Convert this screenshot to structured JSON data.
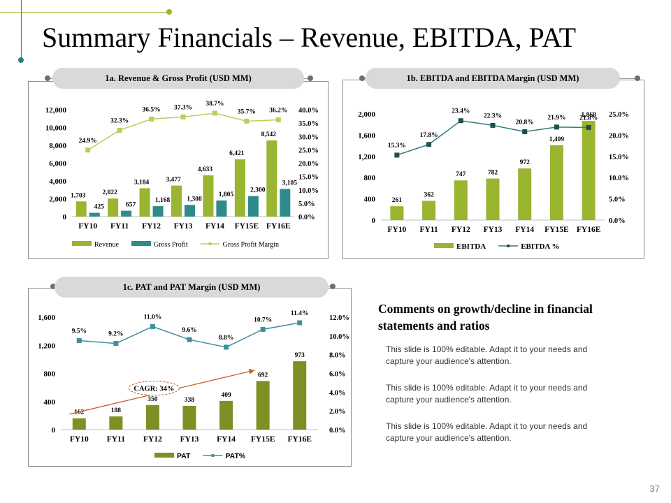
{
  "page": {
    "title": "Summary Financials – Revenue, EBITDA, PAT",
    "page_number": "37"
  },
  "chart_data": [
    {
      "id": "revenue",
      "type": "bar",
      "title": "1a. Revenue & Gross Profit (USD MM)",
      "categories": [
        "FY10",
        "FY11",
        "FY12",
        "FY13",
        "FY14",
        "FY15E",
        "FY16E"
      ],
      "series": [
        {
          "name": "Revenue",
          "type": "bar",
          "axis": "left",
          "color": "#9ab52f",
          "values": [
            1703,
            2022,
            3184,
            3477,
            4633,
            6421,
            8542
          ],
          "labels": [
            "1,703",
            "2,022",
            "3,184",
            "3,477",
            "4,633",
            "6,421",
            "8,542"
          ]
        },
        {
          "name": "Gross Profit",
          "type": "bar",
          "axis": "left",
          "color": "#2e8b8b",
          "values": [
            425,
            657,
            1168,
            1308,
            1805,
            2300,
            3105
          ],
          "labels": [
            "425",
            "657",
            "1,168",
            "1,308",
            "1,805",
            "2,300",
            "3,105"
          ]
        },
        {
          "name": "Gross Profit Margin",
          "type": "line",
          "axis": "right",
          "color": "#b8cf5a",
          "values": [
            24.9,
            32.3,
            36.5,
            37.3,
            38.7,
            35.7,
            36.2
          ],
          "labels": [
            "24.9%",
            "32.3%",
            "36.5%",
            "37.3%",
            "38.7%",
            "35.7%",
            "36.2%"
          ]
        }
      ],
      "ylim": [
        0,
        12000
      ],
      "yticks": [
        "0",
        "2,000",
        "4,000",
        "6,000",
        "8,000",
        "10,000",
        "12,000"
      ],
      "y2lim": [
        0,
        40
      ],
      "y2ticks": [
        "0.0%",
        "5.0%",
        "10.0%",
        "15.0%",
        "20.0%",
        "25.0%",
        "30.0%",
        "35.0%",
        "40.0%"
      ],
      "legend": "bottom"
    },
    {
      "id": "ebitda",
      "type": "bar",
      "title": "1b. EBITDA and EBITDA Margin (USD MM)",
      "categories": [
        "FY10",
        "FY11",
        "FY12",
        "FY13",
        "FY14",
        "FY15E",
        "FY16E"
      ],
      "series": [
        {
          "name": "EBITDA",
          "type": "bar",
          "axis": "left",
          "color": "#9ab52f",
          "values": [
            261,
            362,
            747,
            782,
            972,
            1409,
            1868
          ],
          "labels": [
            "261",
            "362",
            "747",
            "782",
            "972",
            "1,409",
            "1,868"
          ]
        },
        {
          "name": "EBITDA %",
          "type": "line",
          "axis": "right",
          "color": "#2e7d7d",
          "values": [
            15.3,
            17.8,
            23.4,
            22.3,
            20.8,
            21.9,
            21.8
          ],
          "labels": [
            "15.3%",
            "17.8%",
            "23.4%",
            "22.3%",
            "20.8%",
            "21.9%",
            "21.8%"
          ]
        }
      ],
      "ylim": [
        0,
        2000
      ],
      "yticks": [
        "0",
        "400",
        "800",
        "1,200",
        "1,600",
        "2,000"
      ],
      "y2lim": [
        0,
        25
      ],
      "y2ticks": [
        "0.0%",
        "5.0%",
        "10.0%",
        "15.0%",
        "20.0%",
        "25.0%"
      ],
      "legend": "bottom"
    },
    {
      "id": "pat",
      "type": "bar",
      "title": "1c. PAT and PAT Margin (USD MM)",
      "categories": [
        "FY10",
        "FY11",
        "FY12",
        "FY13",
        "FY14",
        "FY15E",
        "FY16E"
      ],
      "series": [
        {
          "name": "PAT",
          "type": "bar",
          "axis": "left",
          "color": "#7f8f23",
          "values": [
            162,
            188,
            350,
            338,
            409,
            692,
            973
          ],
          "labels": [
            "162",
            "188",
            "350",
            "338",
            "409",
            "692",
            "973"
          ]
        },
        {
          "name": "PAT%",
          "type": "line",
          "axis": "right",
          "color": "#3f8f9f",
          "values": [
            9.5,
            9.2,
            11.0,
            9.6,
            8.8,
            10.7,
            11.4
          ],
          "labels": [
            "9.5%",
            "9.2%",
            "11.0%",
            "9.6%",
            "8.8%",
            "10.7%",
            "11.4%"
          ]
        }
      ],
      "ylim": [
        0,
        1600
      ],
      "yticks": [
        "0",
        "400",
        "800",
        "1,200",
        "1,600"
      ],
      "y2lim": [
        0,
        12
      ],
      "y2ticks": [
        "0.0%",
        "2.0%",
        "4.0%",
        "6.0%",
        "8.0%",
        "10.0%",
        "12.0%"
      ],
      "annotation": {
        "text": "CAGR: 34%",
        "color": "#c55a28"
      },
      "legend": "bottom"
    }
  ],
  "comments": {
    "title": "Comments on growth/decline in financial statements and ratios",
    "items": [
      "This slide is 100% editable. Adapt it to your needs and capture your audience's attention.",
      "This slide is 100% editable. Adapt it to your needs and capture your audience's attention.",
      "This slide is 100% editable. Adapt it to your needs and capture your audience's attention."
    ]
  }
}
